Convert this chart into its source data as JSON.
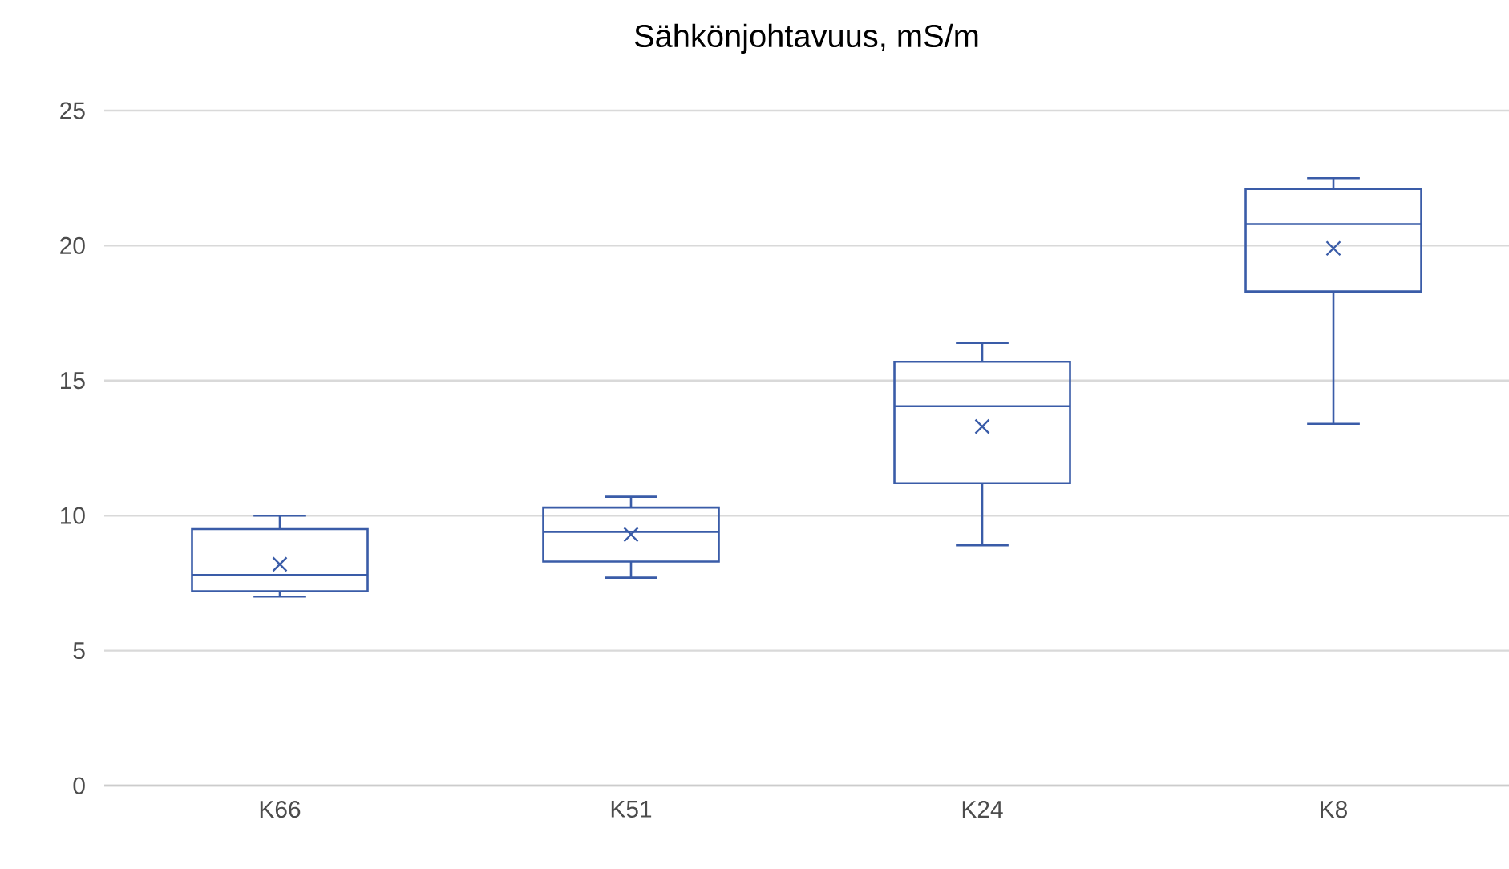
{
  "chart_data": {
    "type": "box",
    "title": "Sähkönjohtavuus, mS/m",
    "categories": [
      "K66",
      "K51",
      "K24",
      "K8"
    ],
    "series": [
      {
        "color": "#3a5ca8",
        "boxes": [
          {
            "low": 7.0,
            "q1": 7.2,
            "median": 7.8,
            "q3": 9.5,
            "high": 10.0,
            "mean": 8.2
          },
          {
            "low": 7.7,
            "q1": 8.3,
            "median": 9.4,
            "q3": 10.3,
            "high": 10.7,
            "mean": 9.3
          },
          {
            "low": 8.9,
            "q1": 11.2,
            "median": 14.05,
            "q3": 15.7,
            "high": 16.4,
            "mean": 13.3
          },
          {
            "low": 13.4,
            "q1": 18.3,
            "median": 20.8,
            "q3": 22.1,
            "high": 22.5,
            "mean": 19.9
          }
        ]
      }
    ],
    "ylim": [
      0,
      25
    ],
    "yticks": [
      0,
      5,
      10,
      15,
      20,
      25
    ],
    "grid": "y"
  }
}
